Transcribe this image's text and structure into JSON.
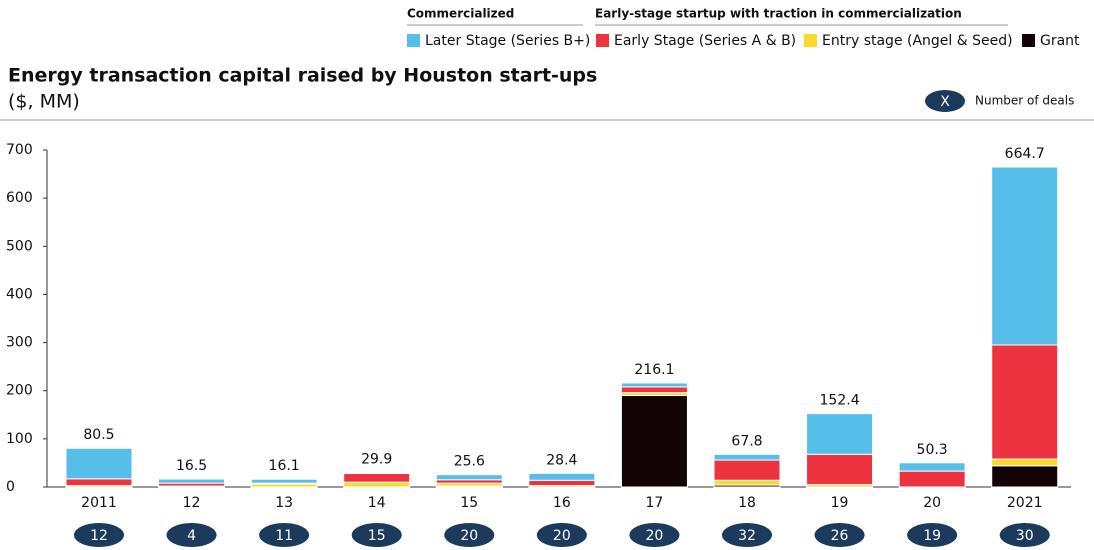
{
  "chart_data": {
    "type": "stacked_bar",
    "title": "Energy transaction capital raised by Houston start-ups",
    "subtitle": "($, MM)",
    "legend_groups": [
      "Commercialized",
      "Early-stage startup with traction in commercialization"
    ],
    "deals_legend": {
      "symbol": "X",
      "label": "Number of deals"
    },
    "categories": [
      "2011",
      "12",
      "13",
      "14",
      "15",
      "16",
      "17",
      "18",
      "19",
      "20",
      "2021"
    ],
    "series": [
      {
        "name": "Grant",
        "color": "#120404",
        "values": [
          0,
          0,
          0,
          0,
          2,
          0,
          190,
          4,
          0,
          0,
          44
        ]
      },
      {
        "name": "Entry stage (Angel & Seed)",
        "color": "#fbd92d",
        "values": [
          3,
          2,
          6,
          10,
          6,
          3,
          6,
          10,
          5,
          0,
          14
        ]
      },
      {
        "name": "Early Stage (Series A & B)",
        "color": "#ee3340",
        "values": [
          14,
          6,
          2,
          18,
          7,
          11,
          12,
          42,
          63,
          33,
          237
        ]
      },
      {
        "name": "Later Stage (Series B+)",
        "color": "#56bfe9",
        "values": [
          63.5,
          8.5,
          8.1,
          1.9,
          10.6,
          14.4,
          8.1,
          11.8,
          84.4,
          17.3,
          369.7
        ]
      }
    ],
    "totals": [
      80.5,
      16.5,
      16.1,
      29.9,
      25.6,
      28.4,
      216.1,
      67.8,
      152.4,
      50.3,
      664.7
    ],
    "deals": [
      12,
      4,
      11,
      15,
      20,
      20,
      20,
      32,
      26,
      19,
      30
    ],
    "ylim": [
      0,
      700
    ],
    "yticks": [
      0,
      100,
      200,
      300,
      400,
      500,
      600,
      700
    ],
    "grid": false
  }
}
